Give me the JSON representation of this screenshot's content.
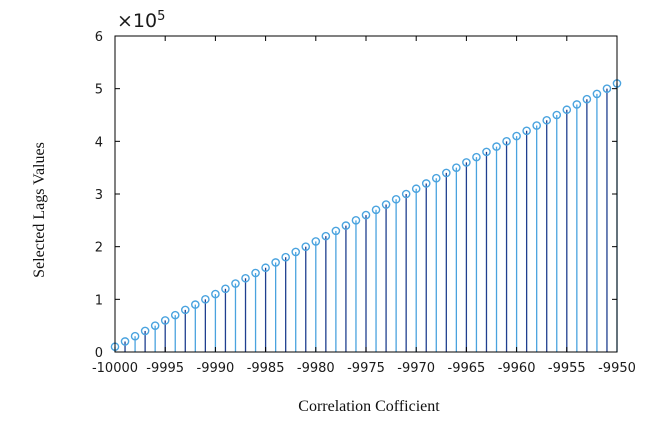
{
  "chart_data": {
    "type": "stem",
    "xlabel": "Correlation Cofficient",
    "ylabel": "Selected Lags Values",
    "y_exponent_label": {
      "base": "×10",
      "power": "5"
    },
    "xlim": [
      -10000,
      -9950
    ],
    "ylim": [
      0,
      6
    ],
    "y_scale_factor": 100000,
    "x_ticks": [
      -10000,
      -9995,
      -9990,
      -9985,
      -9980,
      -9975,
      -9970,
      -9965,
      -9960,
      -9955,
      -9950
    ],
    "x_tick_labels": [
      "-10000",
      "-9995",
      "-9990",
      "-9985",
      "-9980",
      "-9975",
      "-9970",
      "-9965",
      "-9960",
      "-9955",
      "-9950"
    ],
    "y_ticks": [
      0,
      1,
      2,
      3,
      4,
      5,
      6
    ],
    "y_tick_labels": [
      "0",
      "1",
      "2",
      "3",
      "4",
      "5",
      "6"
    ],
    "x": [
      -10000,
      -9999,
      -9998,
      -9997,
      -9996,
      -9995,
      -9994,
      -9993,
      -9992,
      -9991,
      -9990,
      -9989,
      -9988,
      -9987,
      -9986,
      -9985,
      -9984,
      -9983,
      -9982,
      -9981,
      -9980,
      -9979,
      -9978,
      -9977,
      -9976,
      -9975,
      -9974,
      -9973,
      -9972,
      -9971,
      -9970,
      -9969,
      -9968,
      -9967,
      -9966,
      -9965,
      -9964,
      -9963,
      -9962,
      -9961,
      -9960,
      -9959,
      -9958,
      -9957,
      -9956,
      -9955,
      -9954,
      -9953,
      -9952,
      -9951,
      -9950
    ],
    "y": [
      0.1,
      0.2,
      0.3,
      0.4,
      0.5,
      0.6,
      0.7,
      0.8,
      0.9,
      1.0,
      1.1,
      1.2,
      1.3,
      1.4,
      1.5,
      1.6,
      1.7,
      1.8,
      1.9,
      2.0,
      2.1,
      2.2,
      2.3,
      2.4,
      2.5,
      2.6,
      2.7,
      2.8,
      2.9,
      3.0,
      3.1,
      3.2,
      3.3,
      3.4,
      3.5,
      3.6,
      3.7,
      3.8,
      3.9,
      4.0,
      4.1,
      4.2,
      4.3,
      4.4,
      4.5,
      4.6,
      4.7,
      4.8,
      4.9,
      5.0,
      5.1
    ],
    "grid": false,
    "colors": {
      "light": "#4aa3df",
      "dark": "#1f3f8f",
      "axis": "#000000"
    }
  }
}
